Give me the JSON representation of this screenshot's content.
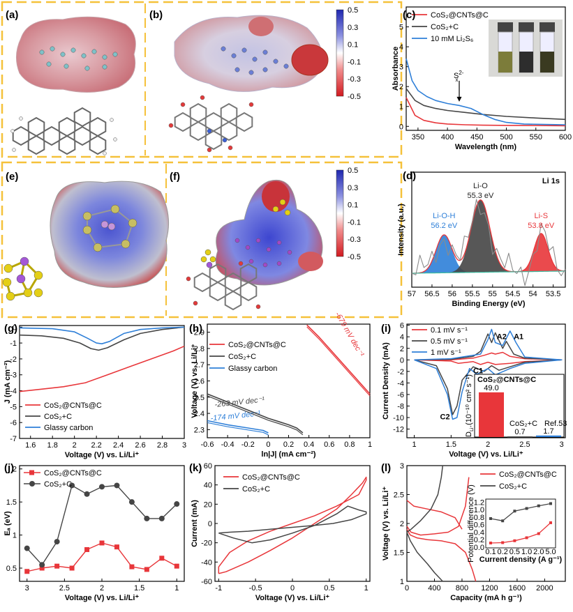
{
  "panel_labels": {
    "a": "(a)",
    "b": "(b)",
    "c": "(c)",
    "d": "(d)",
    "e": "(e)",
    "f": "(f)",
    "g": "(g)",
    "h": "(h)",
    "i": "(i)",
    "j": "(j)",
    "k": "(k)",
    "l": "(l)"
  },
  "colors": {
    "red": "#e8363a",
    "black": "#454545",
    "blue": "#2e7fd8",
    "frame": "#f5c13a",
    "pos": "#2a2fb8",
    "neg": "#d1191f",
    "yellow": "#e4cf16",
    "purple": "#a458d6",
    "gray": "#8b8b8b"
  },
  "colorbar": {
    "ticks": [
      "0.5",
      "0.3",
      "0.1",
      "-0.1",
      "-0.3",
      "-0.5"
    ]
  },
  "chart_data": [
    {
      "id": "c",
      "type": "line",
      "xlabel": "Wavelength (nm)",
      "ylabel": "Absorbance",
      "xlim": [
        330,
        600
      ],
      "ylim": [
        -0.2,
        6
      ],
      "xticks": [
        "350",
        "400",
        "450",
        "500",
        "550",
        "600"
      ],
      "yticks": [
        "0",
        "1",
        "2",
        "3",
        "4",
        "5"
      ],
      "annotation": "S",
      "annotation_sup": "2-",
      "annotation_sub": "x",
      "annotation_x": 420,
      "annotation_y": 1.1,
      "series": [
        {
          "name": "CoS₂@CNTs@C",
          "color": "red",
          "x": [
            330,
            345,
            360,
            380,
            400,
            430,
            460,
            500,
            550,
            600
          ],
          "y": [
            1.45,
            0.55,
            0.3,
            0.18,
            0.12,
            0.08,
            0.06,
            0.05,
            0.04,
            0.03
          ]
        },
        {
          "name": "CoS₂+C",
          "color": "black",
          "x": [
            330,
            345,
            360,
            380,
            400,
            430,
            460,
            500,
            550,
            600
          ],
          "y": [
            1.9,
            1.3,
            1.05,
            0.9,
            0.8,
            0.7,
            0.6,
            0.5,
            0.42,
            0.35
          ]
        },
        {
          "name": "10 mM Li₂S₆",
          "color": "blue",
          "x": [
            330,
            340,
            350,
            365,
            380,
            400,
            420,
            440,
            460,
            480,
            500,
            530,
            560,
            600
          ],
          "y": [
            3.4,
            2.3,
            1.8,
            1.5,
            1.3,
            1.15,
            1.05,
            0.9,
            0.6,
            0.35,
            0.2,
            0.12,
            0.1,
            0.08
          ]
        }
      ]
    },
    {
      "id": "d",
      "type": "area",
      "title": "Li 1s",
      "xlabel": "Binding Energy (eV)",
      "ylabel": "Intensity (a.u.)",
      "xlim": [
        57,
        53.2
      ],
      "xticks": [
        "57",
        "56.5",
        "56",
        "55.5",
        "55",
        "54.5",
        "54",
        "53.5"
      ],
      "peaks": [
        {
          "name": "Li-O-H",
          "value": "56.2 eV",
          "center": 56.2,
          "height": 0.33,
          "width": 0.28,
          "color": "blue"
        },
        {
          "name": "Li-O",
          "value": "55.3 eV",
          "center": 55.3,
          "height": 0.63,
          "width": 0.33,
          "color": "black"
        },
        {
          "name": "Li-S",
          "value": "53.8 eV",
          "center": 53.8,
          "height": 0.33,
          "width": 0.24,
          "color": "red"
        }
      ]
    },
    {
      "id": "g",
      "type": "line",
      "xlabel": "Voltage (V) vs. Li/Li⁺",
      "ylabel": "J (mA cm⁻²)",
      "xlim": [
        1.5,
        3
      ],
      "ylim": [
        -7,
        0.1
      ],
      "xticks": [
        "1.6",
        "1.8",
        "2",
        "2.2",
        "2.4",
        "2.6",
        "2.8",
        "3"
      ],
      "yticks": [
        "0",
        "-1",
        "-2",
        "-3",
        "-4",
        "-5",
        "-6",
        "-7"
      ],
      "series": [
        {
          "name": "CoS₂@CNTs@C",
          "color": "red",
          "x": [
            1.5,
            1.7,
            1.9,
            2.1,
            2.3,
            2.5,
            2.7,
            2.9,
            3.0
          ],
          "y": [
            -4.05,
            -3.9,
            -3.75,
            -3.5,
            -3.0,
            -2.5,
            -2.0,
            -1.5,
            -1.2
          ]
        },
        {
          "name": "CoS₂+C",
          "color": "black",
          "x": [
            1.5,
            1.7,
            1.9,
            2.05,
            2.15,
            2.22,
            2.3,
            2.45,
            2.6,
            2.8,
            3.0
          ],
          "y": [
            -0.5,
            -0.55,
            -0.7,
            -1.0,
            -1.35,
            -1.45,
            -1.3,
            -0.8,
            -0.4,
            -0.15,
            0
          ]
        },
        {
          "name": "Glassy carbon",
          "color": "blue",
          "x": [
            1.5,
            1.8,
            2.0,
            2.12,
            2.2,
            2.25,
            2.32,
            2.45,
            2.6,
            2.8,
            3.0
          ],
          "y": [
            -0.05,
            -0.1,
            -0.3,
            -0.7,
            -1.0,
            -1.05,
            -0.9,
            -0.4,
            -0.15,
            -0.05,
            0
          ]
        }
      ]
    },
    {
      "id": "h",
      "type": "line",
      "xlabel": "ln|J| (mA cm⁻²)",
      "ylabel": "Voltage (V) vs. Li/Li⁺",
      "xlim": [
        -0.6,
        1
      ],
      "ylim": [
        2.25,
        2.95
      ],
      "xticks": [
        "-0.6",
        "-0.4",
        "-0.2",
        "0",
        "0.2",
        "0.4",
        "0.6",
        "0.8",
        "1"
      ],
      "yticks": [
        "2.3",
        "2.4",
        "2.5",
        "2.6",
        "2.7",
        "2.8",
        "2.9"
      ],
      "slopes": [
        {
          "text": "-679 mV dec⁻¹",
          "color": "red",
          "x": 0.78,
          "y": 2.88
        },
        {
          "text": "-263 mV dec⁻¹",
          "color": "black",
          "x": -0.28,
          "y": 2.455
        },
        {
          "text": "-174 mV dec⁻¹",
          "color": "blue",
          "x": -0.32,
          "y": 2.37
        }
      ],
      "series": [
        {
          "name": "CoS₂@CNTs@C",
          "color": "red",
          "x": [
            0.38,
            0.5,
            0.6,
            0.7,
            0.8,
            0.9,
            1.0
          ],
          "y": [
            2.945,
            2.87,
            2.8,
            2.73,
            2.66,
            2.59,
            2.52
          ]
        },
        {
          "name": "CoS₂+C",
          "color": "black",
          "x": [
            -0.6,
            -0.4,
            -0.2,
            0,
            0.1,
            0.2,
            0.28,
            0.34
          ],
          "y": [
            2.52,
            2.47,
            2.42,
            2.37,
            2.35,
            2.33,
            2.31,
            2.28
          ]
        },
        {
          "name": "Glassy carbon",
          "color": "blue",
          "x": [
            -0.6,
            -0.4,
            -0.2,
            -0.05,
            0
          ],
          "y": [
            2.355,
            2.33,
            2.31,
            2.295,
            2.28
          ]
        }
      ]
    },
    {
      "id": "i",
      "type": "line",
      "xlabel": "Voltage (V) vs. Li/Li⁺",
      "ylabel": "Current Density (mA)",
      "xlim": [
        0.9,
        3.05
      ],
      "ylim": [
        -13.5,
        6.2
      ],
      "xticks": [
        "1",
        "1.5",
        "2",
        "2.5",
        "3"
      ],
      "yticks": [
        "6",
        "4",
        "2",
        "0",
        "-2",
        "-4",
        "-6",
        "-8",
        "-10",
        "-12"
      ],
      "peak_labels": [
        {
          "text": "A2",
          "x": 2.12,
          "y": 3.6
        },
        {
          "text": "A1",
          "x": 2.35,
          "y": 3.6
        },
        {
          "text": "C1",
          "x": 1.8,
          "y": -2.3
        },
        {
          "text": "C2",
          "x": 1.35,
          "y": -10.3
        }
      ],
      "series": [
        {
          "name": "0.1 mV s⁻¹",
          "color": "red",
          "x": [
            1.0,
            1.5,
            1.8,
            1.95,
            2.05,
            2.1,
            2.2,
            2.3,
            2.5,
            3.0,
            2.5,
            2.3,
            2.1,
            2.0,
            1.9,
            1.8,
            1.6,
            1.5,
            1.0
          ],
          "y": [
            0,
            0,
            0.3,
            0.8,
            1.2,
            1.0,
            1.3,
            0.6,
            0.2,
            0,
            -0.3,
            -0.6,
            -0.8,
            -0.4,
            -0.8,
            -0.3,
            -0.6,
            -0.2,
            0
          ]
        },
        {
          "name": "0.5 mV s⁻¹",
          "color": "black",
          "x": [
            1.0,
            1.5,
            1.8,
            1.9,
            2.0,
            2.05,
            2.1,
            2.2,
            2.25,
            2.35,
            2.5,
            3.0,
            2.5,
            2.3,
            2.15,
            2.05,
            1.95,
            1.8,
            1.65,
            1.58,
            1.52,
            1.45,
            1.3,
            1.0
          ],
          "y": [
            0,
            0.1,
            0.6,
            1.5,
            4.5,
            3.0,
            4.7,
            2.0,
            3.2,
            1.0,
            0.3,
            0,
            -0.4,
            -1.2,
            -1.8,
            -1.0,
            -2.0,
            -1.2,
            -3.5,
            -8.0,
            -9.5,
            -5.0,
            -1.0,
            0
          ]
        },
        {
          "name": "1 mV s⁻¹",
          "color": "blue",
          "x": [
            1.0,
            1.5,
            1.9,
            2.0,
            2.05,
            2.1,
            2.2,
            2.3,
            2.38,
            2.5,
            3.0,
            2.5,
            2.3,
            2.1,
            2.0,
            1.85,
            1.75,
            1.65,
            1.58,
            1.52,
            1.45,
            1.3,
            1.0
          ],
          "y": [
            0,
            0.2,
            1.0,
            3.5,
            5.3,
            3.0,
            2.5,
            5.0,
            3.0,
            0.5,
            0,
            -0.6,
            -1.5,
            -2.6,
            -1.5,
            -2.5,
            -1.5,
            -5.5,
            -10.0,
            -10.3,
            -6.0,
            -1.5,
            0
          ]
        }
      ],
      "inset": {
        "ylabel": "D",
        "ylabel_sub": "Li⁺",
        "ylabel_tail": "(10⁻¹⁰ cm² s⁻¹)",
        "bars": [
          {
            "label": "CoS₂@CNTs@C",
            "value": 49.0,
            "value_text": "49.0",
            "color": "red"
          },
          {
            "label": "CoS₂+C",
            "value": 0.7,
            "value_text": "0.7",
            "color": "black"
          },
          {
            "label": "Ref.53",
            "value": 1.7,
            "value_text": "1.7",
            "color": "blue"
          }
        ]
      }
    },
    {
      "id": "j",
      "type": "line",
      "xlabel": "Voltage (V) vs. Li/Li⁺",
      "ylabel": "Eₐ (eV)",
      "xlim": [
        3.1,
        0.9
      ],
      "ylim": [
        0.3,
        2.05
      ],
      "xticks": [
        "3",
        "2.5",
        "2",
        "1.5",
        "1"
      ],
      "yticks": [
        "0.5",
        "1",
        "1.5",
        "2"
      ],
      "series": [
        {
          "name": "CoS₂@CNTs@C",
          "color": "red",
          "marker": "square",
          "x": [
            3.0,
            2.8,
            2.6,
            2.4,
            2.2,
            2.0,
            1.8,
            1.6,
            1.4,
            1.2,
            1.0
          ],
          "y": [
            0.45,
            0.5,
            0.53,
            0.5,
            0.78,
            0.88,
            0.82,
            0.52,
            0.48,
            0.65,
            0.53
          ]
        },
        {
          "name": "CoS₂+C",
          "color": "black",
          "marker": "circle",
          "x": [
            3.0,
            2.8,
            2.6,
            2.4,
            2.2,
            2.0,
            1.8,
            1.6,
            1.4,
            1.2,
            1.0
          ],
          "y": [
            0.8,
            0.55,
            0.9,
            1.75,
            1.62,
            1.73,
            1.75,
            1.5,
            1.25,
            1.25,
            1.47
          ]
        }
      ]
    },
    {
      "id": "k",
      "type": "line",
      "xlabel": "Voltage (V) vs. Li/Li⁺",
      "ylabel": "Current (mA)",
      "xlim": [
        -1.05,
        1.05
      ],
      "ylim": [
        -60,
        60
      ],
      "xticks": [
        "-1",
        "-0.5",
        "0",
        "0.5",
        "1"
      ],
      "yticks": [
        "60",
        "40",
        "20",
        "0",
        "-20",
        "-40",
        "-60"
      ],
      "series": [
        {
          "name": "CoS₂@CNTs@C",
          "color": "red",
          "x": [
            -1.0,
            -0.9,
            -0.6,
            -0.3,
            0,
            0.3,
            0.6,
            0.8,
            0.95,
            1.0,
            1.0,
            0.9,
            0.6,
            0.3,
            0,
            -0.3,
            -0.6,
            -0.85,
            -0.95,
            -1.0,
            -1.0
          ],
          "y": [
            -52,
            -50,
            -40,
            -28,
            -15,
            0,
            15,
            30,
            42,
            48,
            45,
            30,
            18,
            8,
            0,
            -8,
            -18,
            -30,
            -40,
            -45,
            -52
          ]
        },
        {
          "name": "CoS₂+C",
          "color": "black",
          "x": [
            -1.0,
            -0.8,
            -0.55,
            -0.3,
            0,
            0.3,
            0.6,
            0.75,
            0.9,
            1.0,
            1.0,
            0.8,
            0.55,
            0.3,
            0,
            -0.3,
            -0.6,
            -0.85,
            -1.0
          ],
          "y": [
            -10,
            -15,
            -20,
            -17,
            -10,
            -2,
            10,
            18,
            14,
            12,
            10,
            4,
            0,
            -2,
            -4,
            -6,
            -8,
            -9,
            -10
          ]
        }
      ]
    },
    {
      "id": "l",
      "type": "line",
      "xlabel": "Capacity (mA h g⁻¹)",
      "ylabel": "Voltage (V) vs. Li/Li⁺",
      "xlim": [
        0,
        2300
      ],
      "ylim": [
        1,
        3
      ],
      "xticks": [
        "0",
        "400",
        "800",
        "1200",
        "1600",
        "2000"
      ],
      "yticks": [
        "1",
        "1.5",
        "2",
        "2.5",
        "3"
      ],
      "series": [
        {
          "name": "CoS₂@CNTs@C",
          "color": "red",
          "segments": [
            {
              "x": [
                0,
                50,
                150,
                300,
                500,
                700,
                850,
                950,
                1000
              ],
              "y": [
                1.9,
                1.8,
                1.75,
                1.72,
                1.7,
                1.65,
                1.5,
                1.2,
                1.0
              ]
            },
            {
              "x": [
                0,
                60,
                200,
                400,
                600,
                750,
                850,
                900
              ],
              "y": [
                1.95,
                1.85,
                1.8,
                1.82,
                1.85,
                1.95,
                2.3,
                2.8
              ]
            },
            {
              "x": [
                0,
                100,
                300,
                500,
                700,
                800
              ],
              "y": [
                2.4,
                2.3,
                2.25,
                2.2,
                2.1,
                1.9
              ]
            }
          ]
        },
        {
          "name": "CoS₂+C",
          "color": "black",
          "segments": [
            {
              "x": [
                0,
                50,
                150,
                300,
                400,
                480,
                520
              ],
              "y": [
                1.85,
                1.7,
                1.5,
                1.3,
                1.15,
                1.05,
                1.0
              ]
            },
            {
              "x": [
                0,
                60,
                200,
                350,
                450,
                500,
                520
              ],
              "y": [
                1.85,
                1.9,
                2.05,
                2.25,
                2.5,
                2.8,
                3.0
              ]
            }
          ]
        }
      ],
      "inset": {
        "xlabel": "Current density (A g⁻¹)",
        "ylabel": "Potential difference (V)",
        "xticks": [
          "0.1",
          "0.2",
          "0.5",
          "1.0",
          "2.0",
          "5.0"
        ],
        "yticks": [
          "0.0",
          "0.2",
          "0.4",
          "0.6",
          "0.8",
          "1.0",
          "1.2"
        ],
        "ylim": [
          0,
          1.3
        ],
        "series": [
          {
            "name": "CoS₂+C",
            "color": "black",
            "y": [
              0.78,
              0.72,
              0.98,
              1.05,
              1.12,
              1.18
            ]
          },
          {
            "name": "CoS₂@CNTs@C",
            "color": "red",
            "y": [
              0.13,
              0.14,
              0.19,
              0.27,
              0.38,
              0.67
            ]
          }
        ]
      }
    }
  ]
}
